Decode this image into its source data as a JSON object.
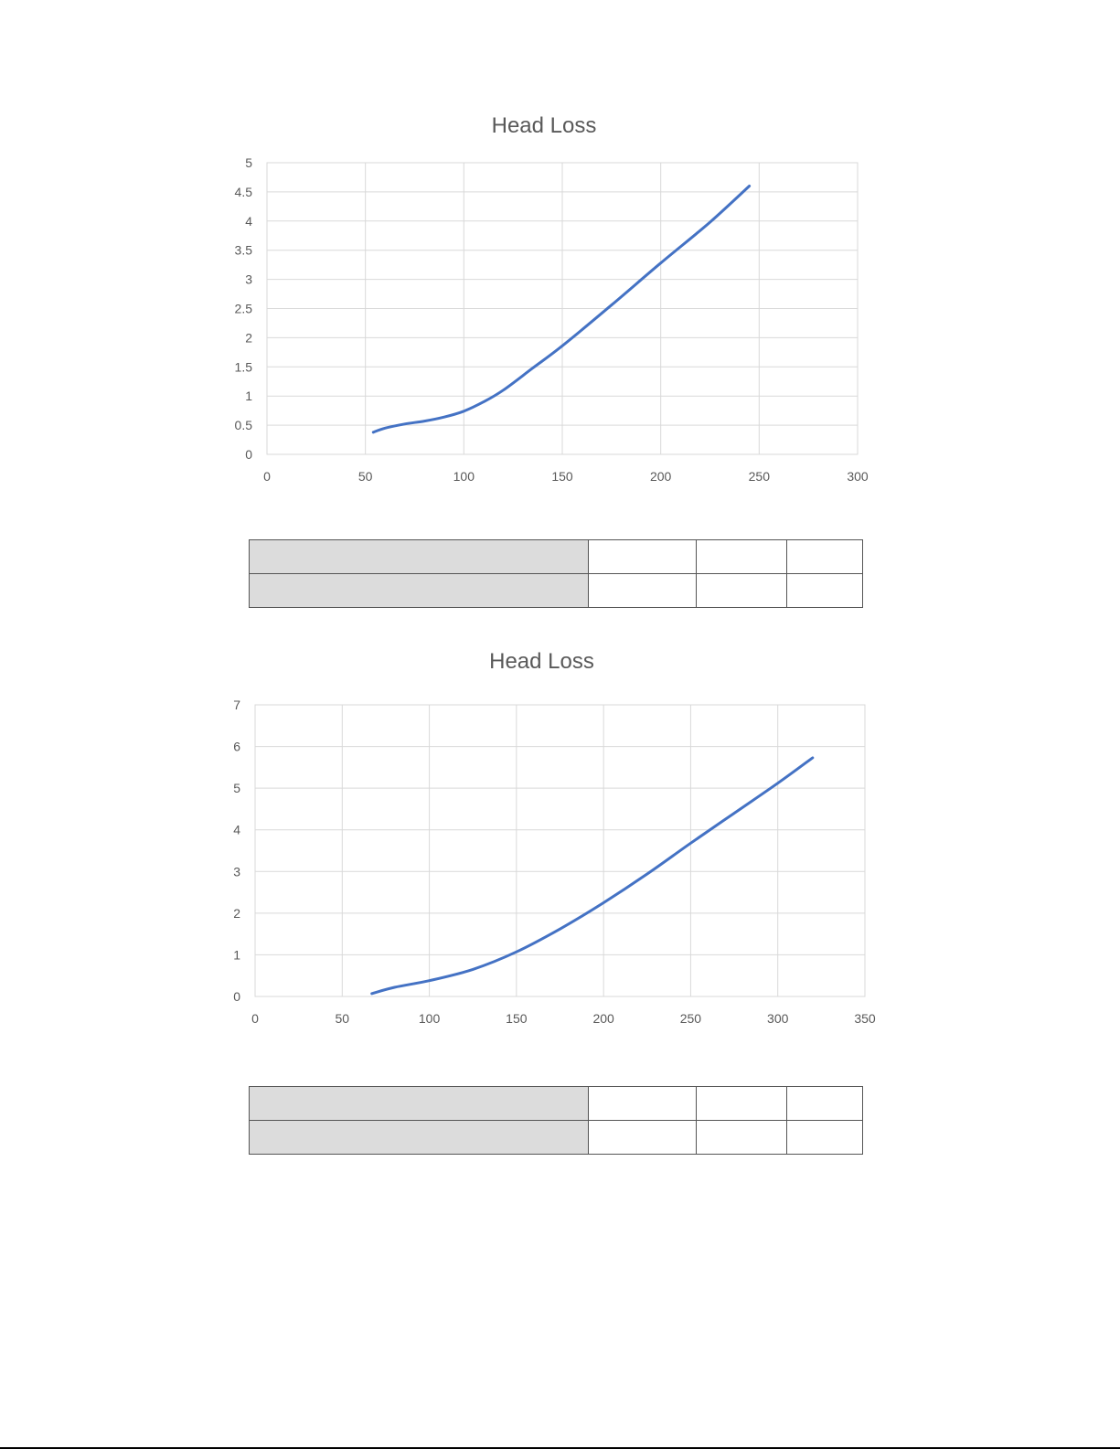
{
  "chart_data": [
    {
      "type": "line",
      "title": "Head Loss",
      "xlabel": "",
      "ylabel": "",
      "xlim": [
        0,
        300
      ],
      "ylim": [
        0,
        5
      ],
      "x_ticks": [
        "0",
        "50",
        "100",
        "150",
        "200",
        "250",
        "300"
      ],
      "y_ticks": [
        "0",
        "0.5",
        "1",
        "1.5",
        "2",
        "2.5",
        "3",
        "3.5",
        "4",
        "4.5",
        "5"
      ],
      "grid": true,
      "legend": "none",
      "line_color": "#4472c4",
      "series": [
        {
          "x": [
            54,
            60,
            70,
            80,
            90,
            100,
            110,
            120,
            135,
            150,
            175,
            200,
            225,
            245
          ],
          "y": [
            0.38,
            0.45,
            0.52,
            0.57,
            0.64,
            0.74,
            0.9,
            1.1,
            1.48,
            1.86,
            2.56,
            3.28,
            3.98,
            4.6
          ]
        }
      ]
    },
    {
      "type": "line",
      "title": "Head Loss",
      "xlabel": "",
      "ylabel": "",
      "xlim": [
        0,
        350
      ],
      "ylim": [
        0,
        7
      ],
      "x_ticks": [
        "0",
        "50",
        "100",
        "150",
        "200",
        "250",
        "300",
        "350"
      ],
      "y_ticks": [
        "0",
        "1",
        "2",
        "3",
        "4",
        "5",
        "6",
        "7"
      ],
      "grid": true,
      "legend": "none",
      "line_color": "#4472c4",
      "series": [
        {
          "x": [
            67,
            80,
            100,
            125,
            150,
            175,
            200,
            225,
            250,
            275,
            300,
            320
          ],
          "y": [
            0.07,
            0.22,
            0.38,
            0.65,
            1.07,
            1.62,
            2.25,
            2.94,
            3.68,
            4.4,
            5.12,
            5.73
          ]
        }
      ]
    }
  ],
  "tables": [
    {
      "rows": [
        [
          "",
          "",
          "",
          ""
        ],
        [
          "",
          "",
          "",
          ""
        ]
      ]
    },
    {
      "rows": [
        [
          "",
          "",
          "",
          ""
        ],
        [
          "",
          "",
          "",
          ""
        ]
      ]
    }
  ]
}
